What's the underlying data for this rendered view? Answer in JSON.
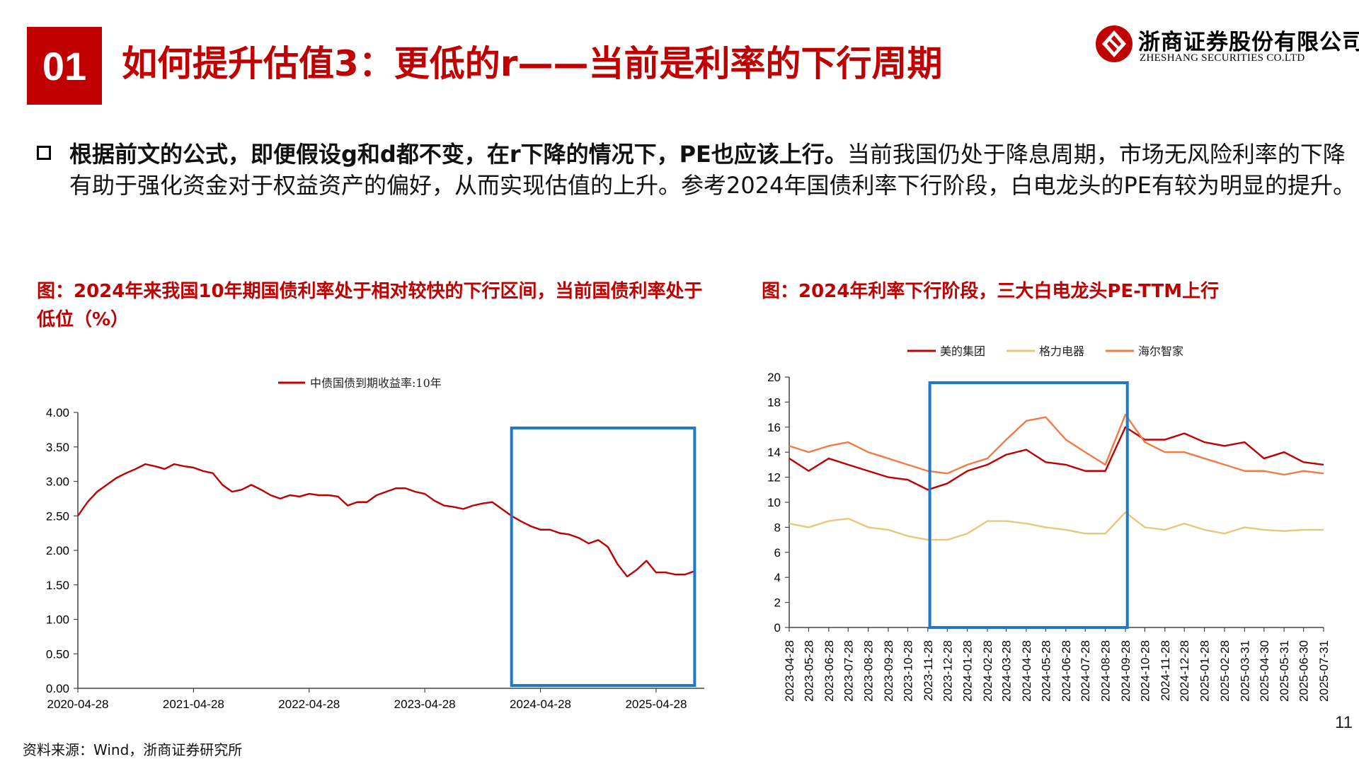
{
  "header": {
    "section_number": "01",
    "title": "如何提升估值3：更低的r——当前是利率的下行周期"
  },
  "logo": {
    "cn": "浙商证券股份有限公司",
    "en": "ZHESHANG SECURITIES CO.LTD"
  },
  "bullet": {
    "bold": "根据前文的公式，即便假设g和d都不变，在r下降的情况下，PE也应该上行。",
    "text": "当前我国仍处于降息周期，市场无风险利率的下降有助于强化资金对于权益资产的偏好，从而实现估值的上升。参考2024年国债利率下行阶段，白电龙头的PE有较为明显的提升。"
  },
  "chart1_title": "图：2024年来我国10年期国债利率处于相对较快的下行区间，当前国债利率处于低位（%）",
  "chart2_title": "图：2024年利率下行阶段，三大白电龙头PE-TTM上行",
  "colors": {
    "accent": "#c00000",
    "highlight_box": "#1f78c8",
    "midea": "#c00000",
    "gree": "#e6c87a",
    "haier": "#f07c45"
  },
  "chart_data": [
    {
      "type": "line",
      "title": "",
      "xlabel": "",
      "ylabel": "",
      "legend_position": "top-center",
      "x_tick_labels": [
        "2020-04-28",
        "2021-04-28",
        "2022-04-28",
        "2023-04-28",
        "2024-04-28",
        "2025-04-28"
      ],
      "y_tick_labels": [
        "0.00",
        "0.50",
        "1.00",
        "1.50",
        "2.00",
        "2.50",
        "3.00",
        "3.50",
        "4.00"
      ],
      "ylim": [
        0,
        4
      ],
      "grid": false,
      "highlight_period": [
        "2024-01",
        "2025-08"
      ],
      "x": [
        "2020-04",
        "2020-05",
        "2020-06",
        "2020-07",
        "2020-08",
        "2020-09",
        "2020-10",
        "2020-11",
        "2020-12",
        "2021-01",
        "2021-02",
        "2021-03",
        "2021-04",
        "2021-05",
        "2021-06",
        "2021-07",
        "2021-08",
        "2021-09",
        "2021-10",
        "2021-11",
        "2021-12",
        "2022-01",
        "2022-02",
        "2022-03",
        "2022-04",
        "2022-05",
        "2022-06",
        "2022-07",
        "2022-08",
        "2022-09",
        "2022-10",
        "2022-11",
        "2022-12",
        "2023-01",
        "2023-02",
        "2023-03",
        "2023-04",
        "2023-05",
        "2023-06",
        "2023-07",
        "2023-08",
        "2023-09",
        "2023-10",
        "2023-11",
        "2023-12",
        "2024-01",
        "2024-02",
        "2024-03",
        "2024-04",
        "2024-05",
        "2024-06",
        "2024-07",
        "2024-08",
        "2024-09",
        "2024-10",
        "2024-11",
        "2024-12",
        "2025-01",
        "2025-02",
        "2025-03",
        "2025-04",
        "2025-05",
        "2025-06",
        "2025-07",
        "2025-08"
      ],
      "series": [
        {
          "name": "中债国债到期收益率:10年",
          "values": [
            2.5,
            2.7,
            2.85,
            2.95,
            3.05,
            3.12,
            3.18,
            3.25,
            3.22,
            3.18,
            3.25,
            3.22,
            3.2,
            3.15,
            3.12,
            2.95,
            2.85,
            2.88,
            2.95,
            2.88,
            2.8,
            2.75,
            2.8,
            2.78,
            2.82,
            2.8,
            2.8,
            2.78,
            2.65,
            2.7,
            2.7,
            2.8,
            2.85,
            2.9,
            2.9,
            2.85,
            2.82,
            2.72,
            2.65,
            2.63,
            2.6,
            2.65,
            2.68,
            2.7,
            2.6,
            2.5,
            2.42,
            2.35,
            2.3,
            2.3,
            2.25,
            2.23,
            2.18,
            2.1,
            2.15,
            2.05,
            1.8,
            1.62,
            1.72,
            1.85,
            1.68,
            1.68,
            1.65,
            1.65,
            1.7
          ]
        }
      ]
    },
    {
      "type": "line",
      "title": "",
      "xlabel": "",
      "ylabel": "",
      "legend_position": "top-center",
      "x_tick_labels": [
        "2023-04-28",
        "2023-05-28",
        "2023-06-28",
        "2023-07-28",
        "2023-08-28",
        "2023-09-28",
        "2023-10-28",
        "2023-11-28",
        "2023-12-28",
        "2024-01-28",
        "2024-02-28",
        "2024-03-28",
        "2024-04-28",
        "2024-05-28",
        "2024-06-28",
        "2024-07-28",
        "2024-08-28",
        "2024-09-28",
        "2024-10-28",
        "2024-11-28",
        "2024-12-28",
        "2025-01-28",
        "2025-02-28",
        "2025-03-31",
        "2025-04-30",
        "2025-05-31",
        "2025-06-30",
        "2025-07-31"
      ],
      "y_tick_labels": [
        "0",
        "2",
        "4",
        "6",
        "8",
        "10",
        "12",
        "14",
        "16",
        "18",
        "20"
      ],
      "ylim": [
        0,
        20
      ],
      "grid": false,
      "highlight_period": [
        "2023-12-01",
        "2024-10-01"
      ],
      "x": [
        "2023-04-28",
        "2023-05-28",
        "2023-06-28",
        "2023-07-28",
        "2023-08-28",
        "2023-09-28",
        "2023-10-28",
        "2023-11-28",
        "2023-12-28",
        "2024-01-28",
        "2024-02-28",
        "2024-03-28",
        "2024-04-28",
        "2024-05-28",
        "2024-06-28",
        "2024-07-28",
        "2024-08-28",
        "2024-09-28",
        "2024-10-28",
        "2024-11-28",
        "2024-12-28",
        "2025-01-28",
        "2025-02-28",
        "2025-03-31",
        "2025-04-30",
        "2025-05-31",
        "2025-06-30",
        "2025-07-31"
      ],
      "series": [
        {
          "name": "美的集团",
          "values": [
            13.5,
            12.5,
            13.5,
            13.0,
            12.5,
            12.0,
            11.8,
            11.0,
            11.5,
            12.5,
            13.0,
            13.8,
            14.2,
            13.2,
            13.0,
            12.5,
            12.5,
            16.0,
            15.0,
            15.0,
            15.5,
            14.8,
            14.5,
            14.8,
            13.5,
            14.0,
            13.2,
            13.0
          ]
        },
        {
          "name": "格力电器",
          "values": [
            8.3,
            8.0,
            8.5,
            8.7,
            8.0,
            7.8,
            7.3,
            7.0,
            7.0,
            7.5,
            8.5,
            8.5,
            8.3,
            8.0,
            7.8,
            7.5,
            7.5,
            9.2,
            8.0,
            7.8,
            8.3,
            7.8,
            7.5,
            8.0,
            7.8,
            7.7,
            7.8,
            7.8
          ]
        },
        {
          "name": "海尔智家",
          "values": [
            14.5,
            14.0,
            14.5,
            14.8,
            14.0,
            13.5,
            13.0,
            12.5,
            12.3,
            13.0,
            13.5,
            15.0,
            16.5,
            16.8,
            15.0,
            14.0,
            13.0,
            17.0,
            14.8,
            14.0,
            14.0,
            13.5,
            13.0,
            12.5,
            12.5,
            12.2,
            12.5,
            12.3
          ]
        }
      ]
    }
  ],
  "footer": {
    "source": "资料来源：Wind，浙商证券研究所",
    "page": "11"
  }
}
